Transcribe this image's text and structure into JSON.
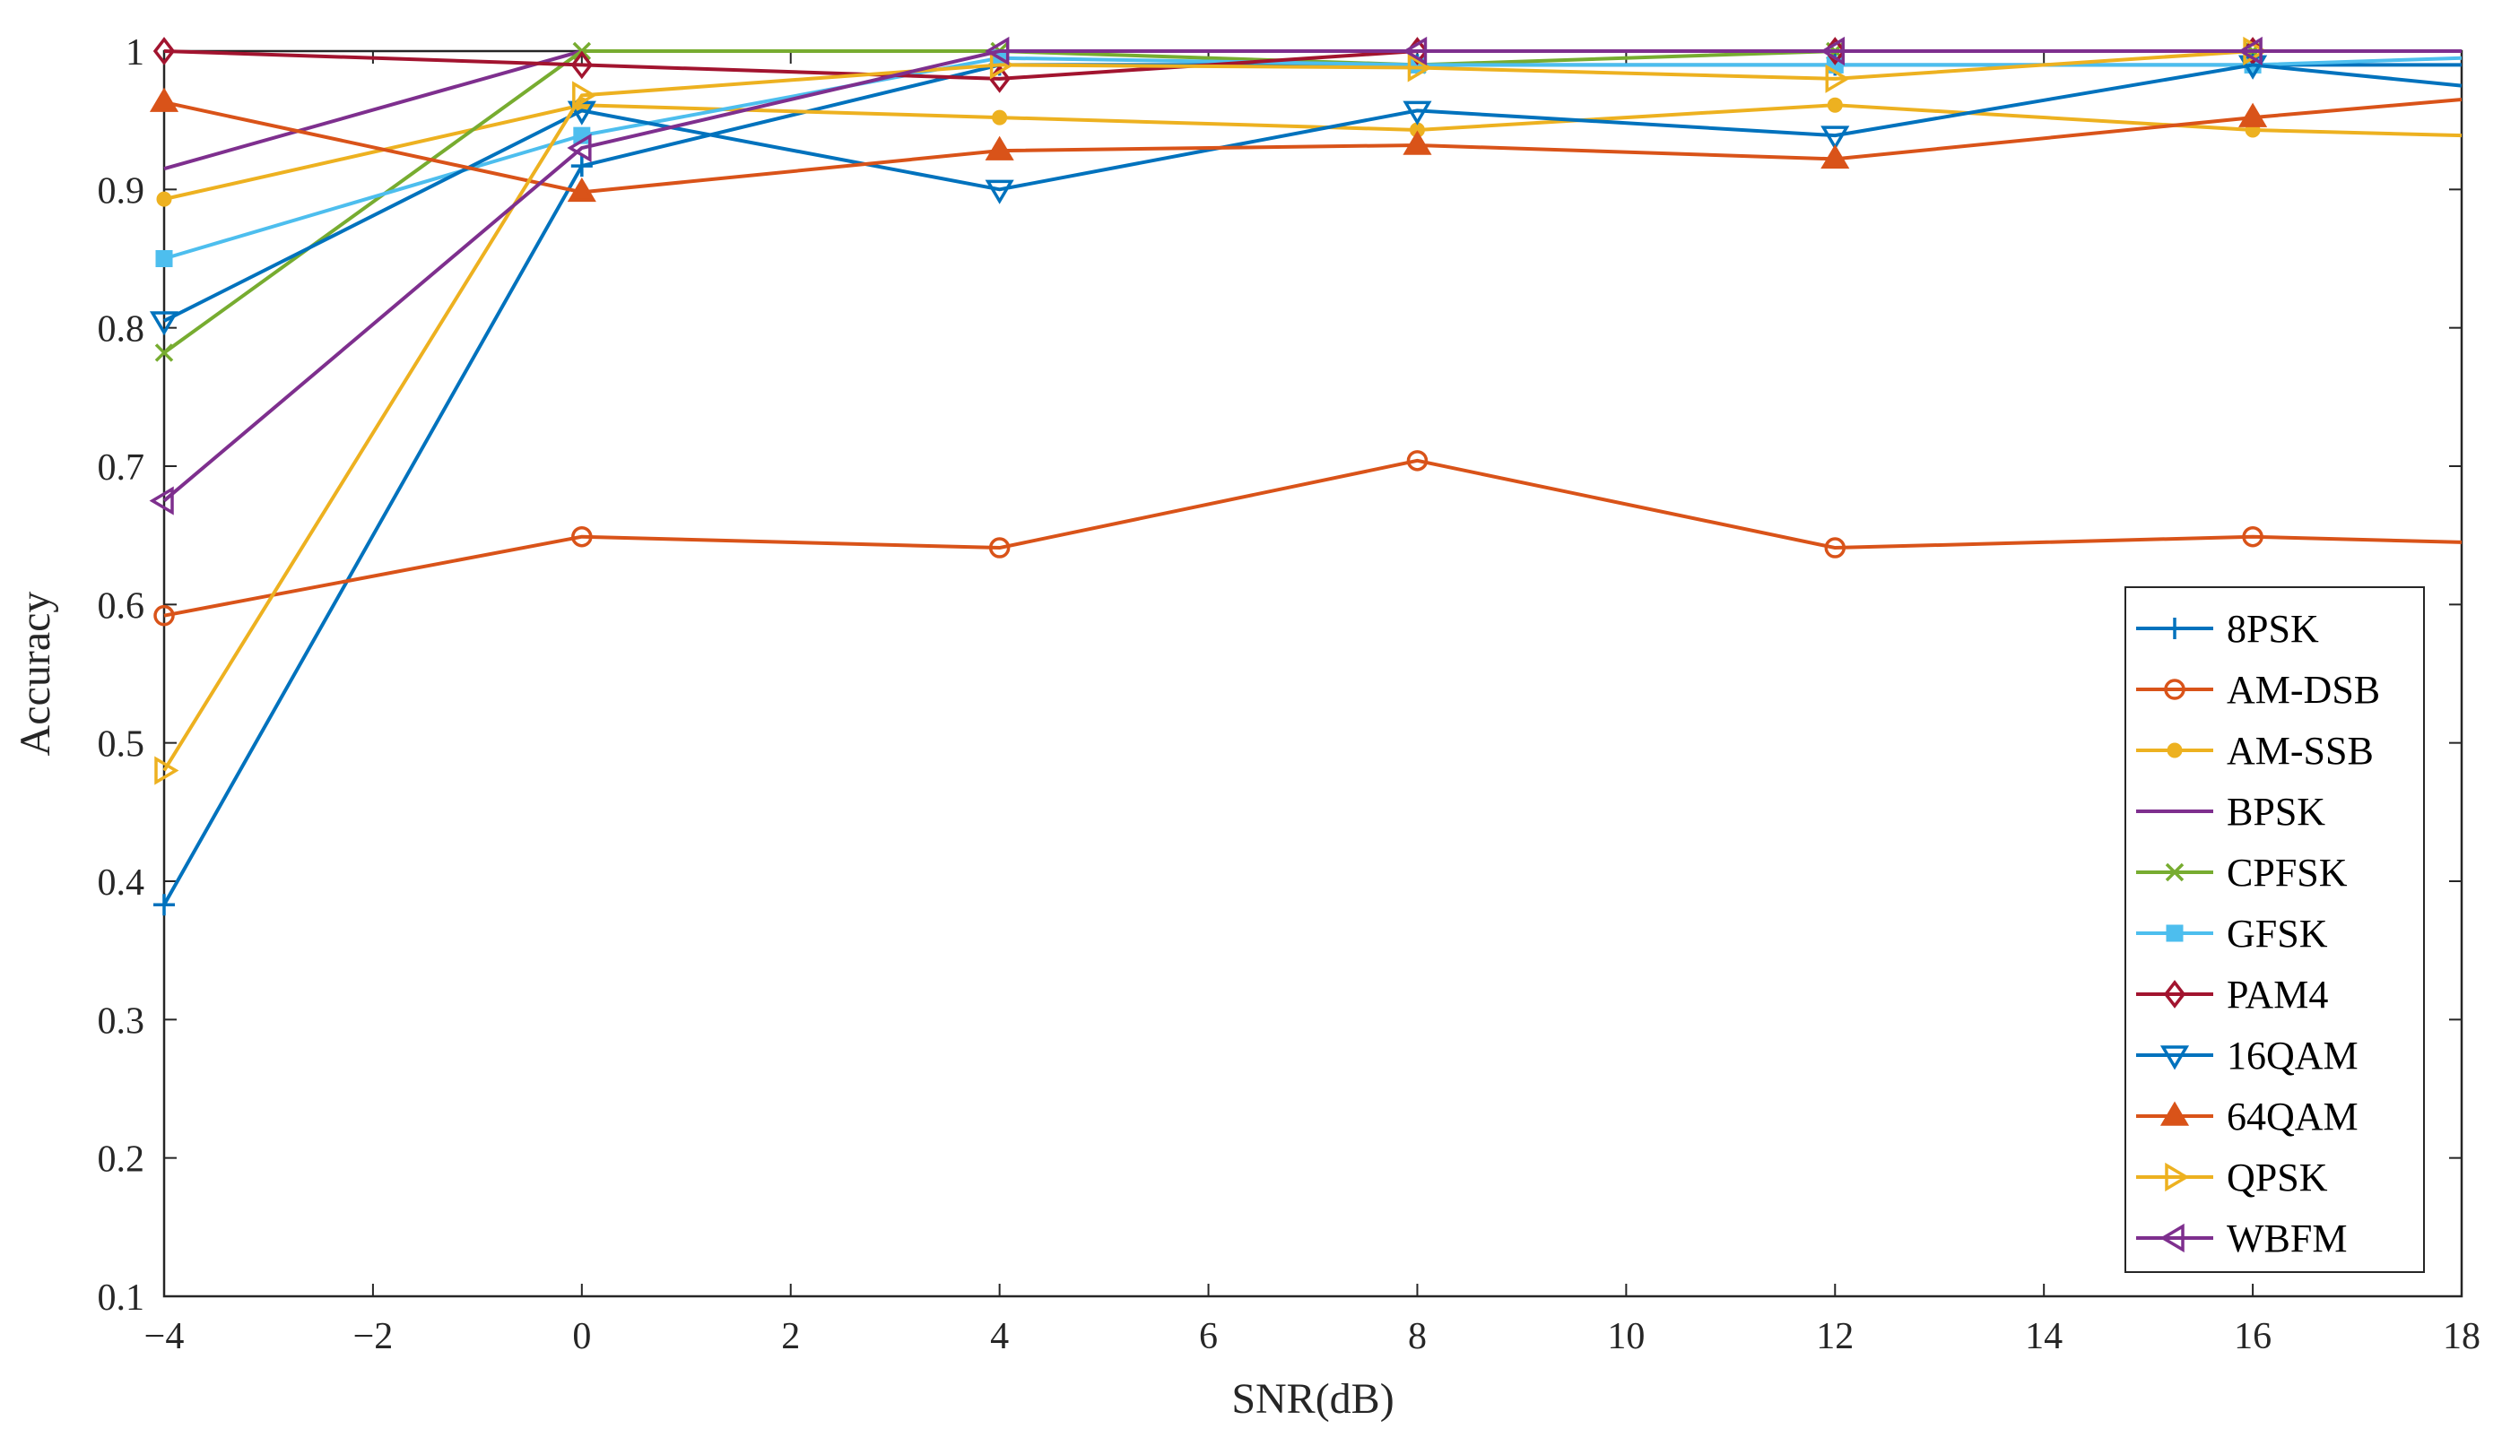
{
  "chart_data": {
    "type": "line",
    "title": "",
    "xlabel": "SNR(dB)",
    "ylabel": "Accuracy",
    "xlim": [
      -4,
      18
    ],
    "ylim": [
      0.1,
      1
    ],
    "xticks": [
      -4,
      -2,
      0,
      2,
      4,
      6,
      8,
      10,
      12,
      14,
      16,
      18
    ],
    "xtick_labels": [
      "−4",
      "−2",
      "0",
      "2",
      "4",
      "6",
      "8",
      "10",
      "12",
      "14",
      "16",
      "18"
    ],
    "yticks": [
      0.1,
      0.2,
      0.3,
      0.4,
      0.5,
      0.6,
      0.7,
      0.8,
      0.9,
      1
    ],
    "ytick_labels": [
      "0.1",
      "0.2",
      "0.3",
      "0.4",
      "0.5",
      "0.6",
      "0.7",
      "0.8",
      "0.9",
      "1"
    ],
    "grid": false,
    "legend_position": "bottom-right",
    "x": [
      -4,
      0,
      4,
      8,
      12,
      16,
      18
    ],
    "series": [
      {
        "name": "8PSK",
        "color": "#0072BD",
        "marker": "plus",
        "y": [
          0.383,
          0.917,
          0.99,
          0.99,
          0.99,
          0.99,
          0.99
        ]
      },
      {
        "name": "AM-DSB",
        "color": "#D95319",
        "marker": "circle",
        "y": [
          0.592,
          0.649,
          0.641,
          0.704,
          0.641,
          0.649,
          0.645
        ]
      },
      {
        "name": "AM-SSB",
        "color": "#EDB120",
        "marker": "dot",
        "y": [
          0.893,
          0.961,
          0.952,
          0.943,
          0.961,
          0.943,
          0.939
        ]
      },
      {
        "name": "BPSK",
        "color": "#7E2F8E",
        "marker": "none",
        "y": [
          0.915,
          1,
          1,
          1,
          1,
          1,
          1
        ]
      },
      {
        "name": "CPFSK",
        "color": "#77AC30",
        "marker": "x",
        "y": [
          0.782,
          1,
          1,
          0.99,
          1,
          1,
          1
        ]
      },
      {
        "name": "GFSK",
        "color": "#4DBEEE",
        "marker": "square",
        "y": [
          0.85,
          0.939,
          0.995,
          0.99,
          0.99,
          0.99,
          0.995
        ]
      },
      {
        "name": "PAM4",
        "color": "#A2142F",
        "marker": "diamond",
        "y": [
          1,
          0.99,
          0.98,
          1,
          1,
          1,
          1
        ]
      },
      {
        "name": "16QAM",
        "color": "#0072BD",
        "marker": "triangle-down",
        "y": [
          0.805,
          0.957,
          0.9,
          0.957,
          0.939,
          0.99,
          0.975
        ]
      },
      {
        "name": "64QAM",
        "color": "#D95319",
        "marker": "triangle-up",
        "y": [
          0.963,
          0.898,
          0.928,
          0.932,
          0.922,
          0.952,
          0.965
        ]
      },
      {
        "name": "QPSK",
        "color": "#EDB120",
        "marker": "triangle-right",
        "y": [
          0.48,
          0.968,
          0.99,
          0.988,
          0.98,
          1,
          1
        ]
      },
      {
        "name": "WBFM",
        "color": "#7E2F8E",
        "marker": "triangle-left",
        "y": [
          0.675,
          0.93,
          1,
          1,
          1,
          1,
          1
        ]
      }
    ]
  }
}
